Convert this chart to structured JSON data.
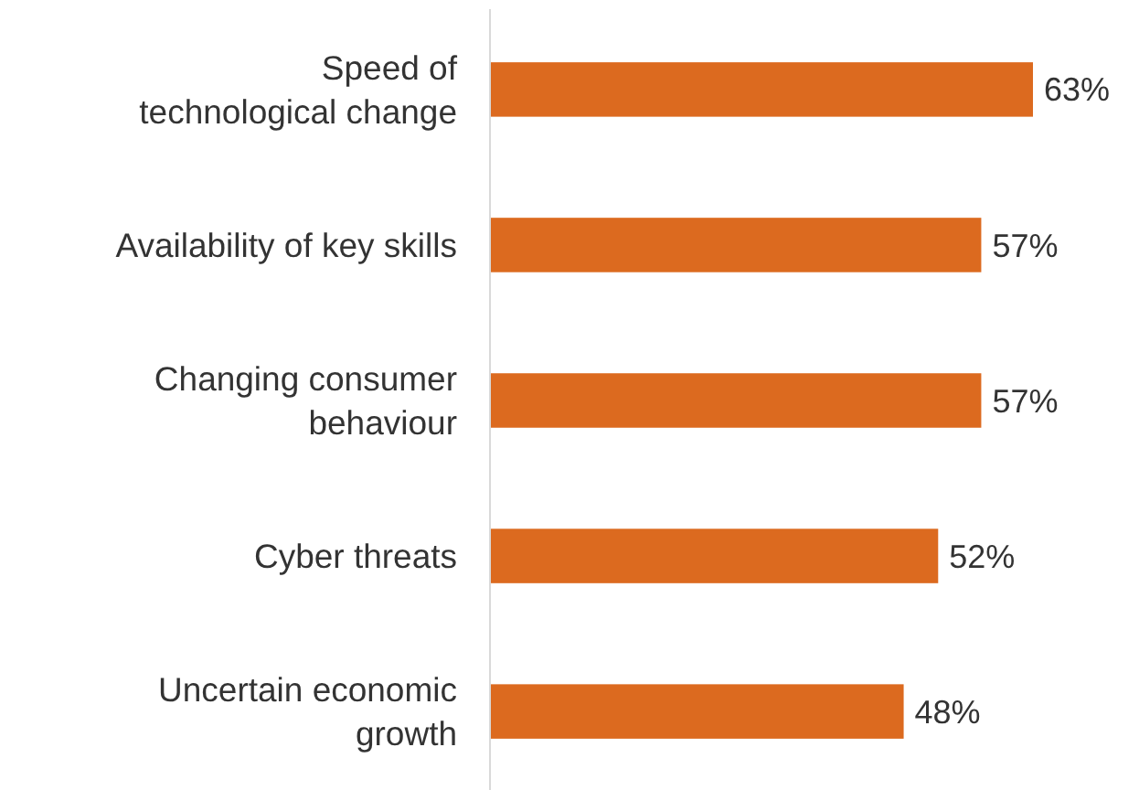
{
  "chart_data": {
    "type": "bar",
    "orientation": "horizontal",
    "categories": [
      "Speed of\ntechnological change",
      "Availability of key skills",
      "Changing consumer\nbehaviour",
      "Cyber threats",
      "Uncertain economic\ngrowth"
    ],
    "values": [
      63,
      57,
      57,
      52,
      48
    ],
    "value_labels": [
      "63%",
      "57%",
      "57%",
      "52%",
      "48%"
    ],
    "color": "#dc6a1f"
  }
}
